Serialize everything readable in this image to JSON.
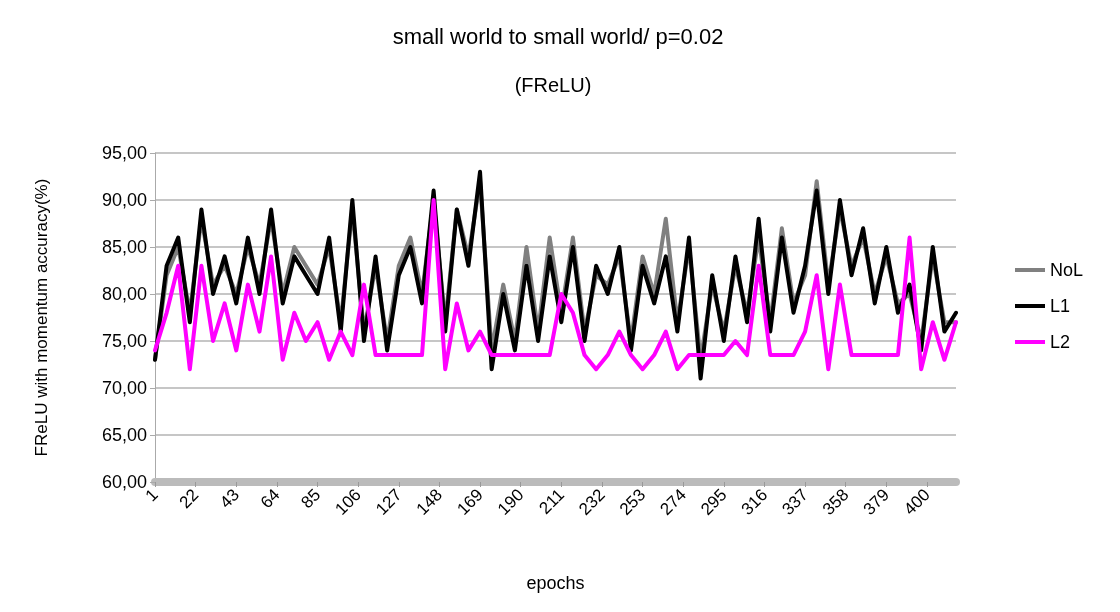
{
  "chart_data": {
    "type": "line",
    "title": "small world to small world/ p=0.02",
    "subtitle": "(FReLU)",
    "xlabel": "epochs",
    "ylabel": "FReLU with momentum accuracy(%)",
    "x": [
      1,
      7,
      13,
      19,
      25,
      31,
      37,
      43,
      49,
      55,
      61,
      67,
      73,
      79,
      85,
      91,
      97,
      103,
      109,
      115,
      121,
      127,
      133,
      139,
      145,
      151,
      157,
      163,
      169,
      175,
      181,
      187,
      193,
      199,
      205,
      211,
      217,
      223,
      229,
      235,
      241,
      247,
      253,
      259,
      265,
      271,
      277,
      283,
      289,
      295,
      301,
      307,
      313,
      319,
      325,
      331,
      337,
      343,
      349,
      355,
      361,
      367,
      373,
      379,
      385,
      391,
      397,
      403,
      409,
      415
    ],
    "series": [
      {
        "name": "NoL",
        "color": "#808080",
        "values": [
          73,
          82,
          85,
          78,
          88,
          81,
          83,
          80,
          85,
          81,
          88,
          80,
          85,
          83,
          81,
          85,
          77,
          89,
          76,
          83,
          75,
          83,
          86,
          80,
          90,
          77,
          89,
          84,
          92,
          74,
          81,
          75,
          85,
          76,
          86,
          78,
          86,
          76,
          82,
          81,
          84,
          75,
          84,
          80,
          88,
          77,
          85,
          73,
          81,
          76,
          83,
          78,
          86,
          77,
          87,
          79,
          82,
          92,
          81,
          89,
          83,
          86,
          80,
          84,
          79,
          80,
          75,
          84,
          77,
          77
        ]
      },
      {
        "name": "L1",
        "color": "#000000",
        "values": [
          73,
          83,
          86,
          77,
          89,
          80,
          84,
          79,
          86,
          80,
          89,
          79,
          84,
          82,
          80,
          86,
          76,
          90,
          75,
          84,
          74,
          82,
          85,
          79,
          91,
          76,
          89,
          83,
          93,
          72,
          80,
          74,
          83,
          75,
          84,
          77,
          85,
          75,
          83,
          80,
          85,
          74,
          83,
          79,
          84,
          76,
          86,
          71,
          82,
          75,
          84,
          77,
          88,
          76,
          86,
          78,
          83,
          91,
          80,
          90,
          82,
          87,
          79,
          85,
          78,
          81,
          74,
          85,
          76,
          78
        ]
      },
      {
        "name": "L2",
        "color": "#ff00ff",
        "values": [
          74,
          78,
          83,
          72,
          83,
          75,
          79,
          74,
          81,
          76,
          84,
          73,
          78,
          75,
          77,
          73,
          76,
          73.5,
          81,
          73.5,
          73.5,
          73.5,
          73.5,
          73.5,
          90,
          72,
          79,
          74,
          76,
          73.5,
          73.5,
          73.5,
          73.5,
          73.5,
          73.5,
          80,
          78,
          73.5,
          72,
          73.5,
          76,
          73.5,
          72,
          73.5,
          76,
          72,
          73.5,
          73.5,
          73.5,
          73.5,
          75,
          73.5,
          83,
          73.5,
          73.5,
          73.5,
          76,
          82,
          72,
          81,
          73.5,
          73.5,
          73.5,
          73.5,
          73.5,
          86,
          72,
          77,
          73,
          77
        ]
      }
    ],
    "xlim": [
      1,
      415
    ],
    "xticks": [
      1,
      22,
      43,
      64,
      85,
      106,
      127,
      148,
      169,
      190,
      211,
      232,
      253,
      274,
      295,
      316,
      337,
      358,
      379,
      400
    ],
    "ylim": [
      60,
      95
    ],
    "yticks": [
      {
        "value": 60,
        "label": "60,00"
      },
      {
        "value": 65,
        "label": "65,00"
      },
      {
        "value": 70,
        "label": "70,00"
      },
      {
        "value": 75,
        "label": "75,00"
      },
      {
        "value": 80,
        "label": "80,00"
      },
      {
        "value": 85,
        "label": "85,00"
      },
      {
        "value": 90,
        "label": "90,00"
      },
      {
        "value": 95,
        "label": "95,00"
      }
    ],
    "grid": "y",
    "legend": "right",
    "marker": "none",
    "line_style": "solid"
  }
}
